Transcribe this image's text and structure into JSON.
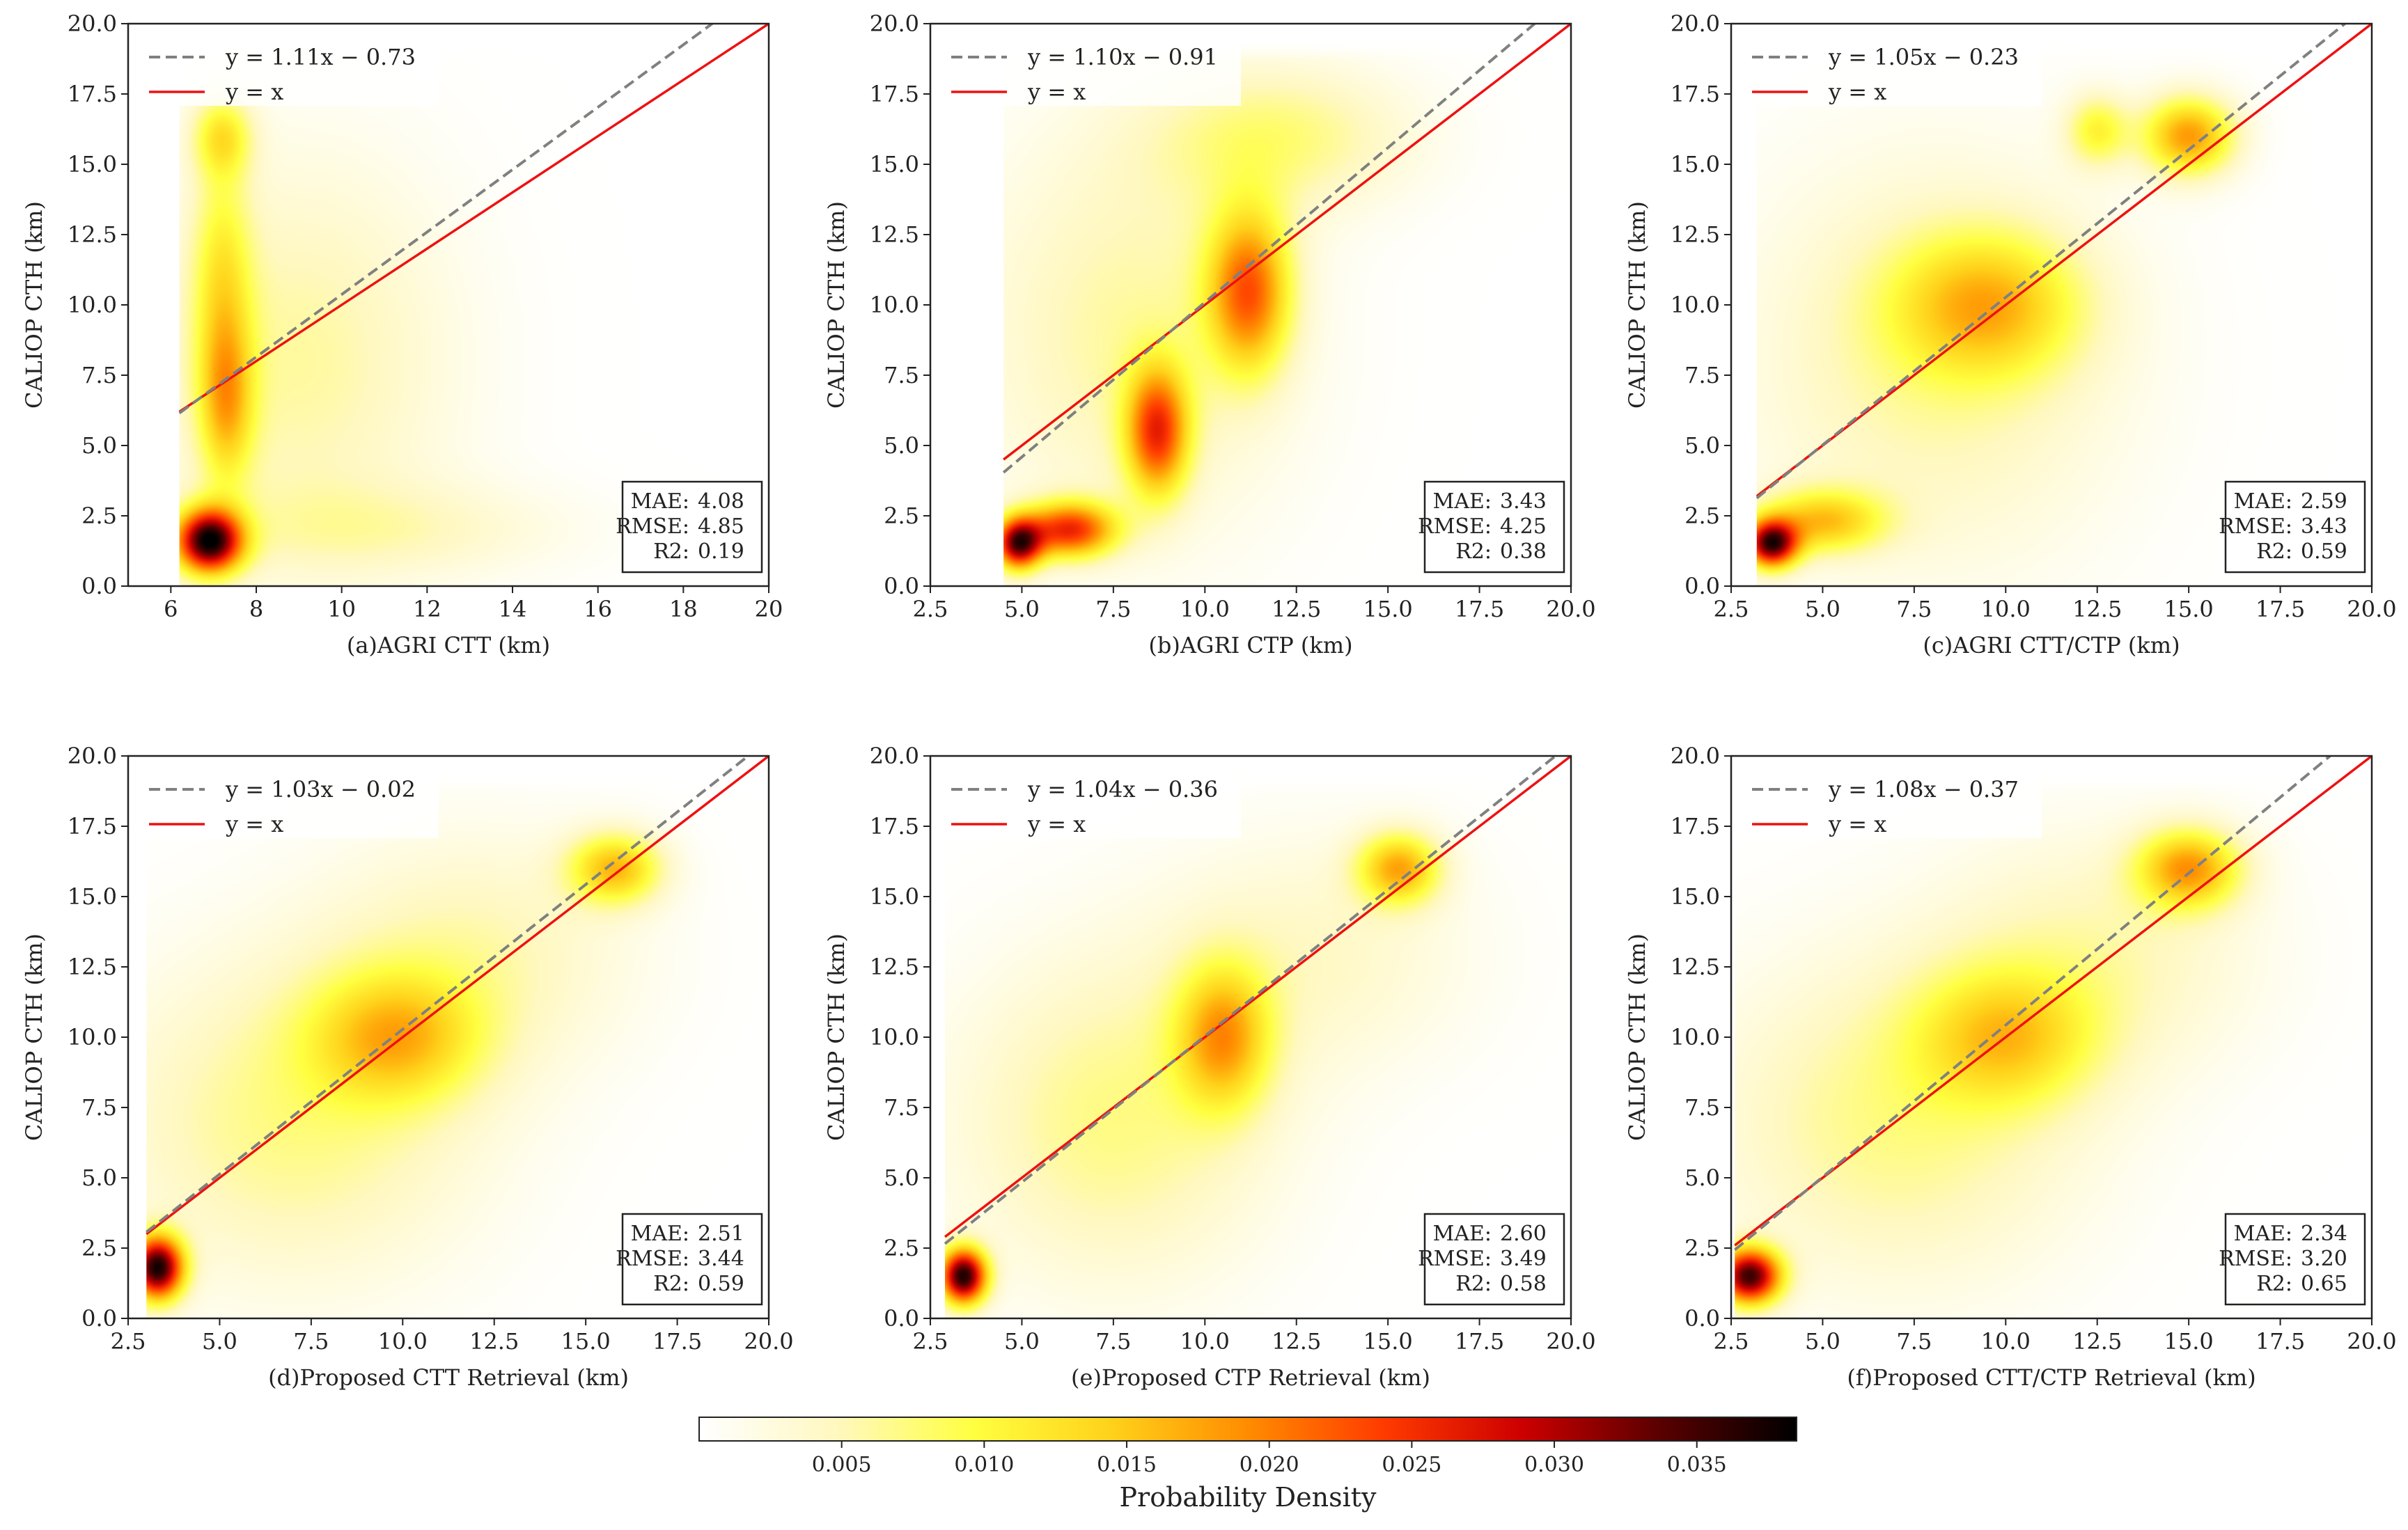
{
  "figure": {
    "colorbar": {
      "label": "Probability Density",
      "ticks": [
        0.005,
        0.01,
        0.015,
        0.02,
        0.025,
        0.03,
        0.035
      ],
      "tick_labels": [
        "0.005",
        "0.010",
        "0.015",
        "0.020",
        "0.025",
        "0.030",
        "0.035"
      ],
      "range": [
        0.0,
        0.0385
      ],
      "colormap": [
        "#ffffff",
        "#fff8c0",
        "#ffff40",
        "#ffd21a",
        "#ff8c00",
        "#ff3a00",
        "#cc0000",
        "#5a0000",
        "#000000"
      ]
    },
    "line_colors": {
      "fit": "#808080",
      "identity": "#ee1111"
    }
  },
  "chart_data": [
    {
      "id": "a",
      "type": "heatmap",
      "xlabel": "(a)AGRI CTT (km)",
      "ylabel": "CALIOP CTH (km)",
      "xlim": [
        5.0,
        20.0
      ],
      "ylim": [
        0.0,
        20.0
      ],
      "xticks": [
        6,
        8,
        10,
        12,
        14,
        16,
        18,
        20
      ],
      "xtick_labels": [
        "6",
        "8",
        "10",
        "12",
        "14",
        "16",
        "18",
        "20"
      ],
      "yticks": [
        0,
        2.5,
        5,
        7.5,
        10,
        12.5,
        15,
        17.5,
        20
      ],
      "ytick_labels": [
        "0.0",
        "2.5",
        "5.0",
        "7.5",
        "10.0",
        "12.5",
        "15.0",
        "17.5",
        "20.0"
      ],
      "data_extent_x": [
        6.2,
        20.0
      ],
      "fit": {
        "label": "y = 1.11x − 0.73",
        "slope": 1.11,
        "intercept": -0.73
      },
      "identity_label": "y = x",
      "stats": [
        {
          "key": "MAE:",
          "value": "4.08"
        },
        {
          "key": "RMSE:",
          "value": "4.85"
        },
        {
          "key": "R2:",
          "value": "0.19"
        }
      ],
      "density_blobs": [
        {
          "x": 6.9,
          "y": 1.6,
          "sx": 0.55,
          "sy": 0.8,
          "v": 0.036
        },
        {
          "x": 7.3,
          "y": 6.5,
          "sx": 0.45,
          "sy": 2.0,
          "v": 0.012
        },
        {
          "x": 7.2,
          "y": 11.0,
          "sx": 0.5,
          "sy": 3.0,
          "v": 0.009
        },
        {
          "x": 7.2,
          "y": 16.0,
          "sx": 0.5,
          "sy": 1.0,
          "v": 0.01
        },
        {
          "x": 9.0,
          "y": 8.0,
          "sx": 2.5,
          "sy": 5.0,
          "v": 0.006
        },
        {
          "x": 11.0,
          "y": 2.0,
          "sx": 3.0,
          "sy": 1.2,
          "v": 0.004
        }
      ]
    },
    {
      "id": "b",
      "type": "heatmap",
      "xlabel": "(b)AGRI CTP (km)",
      "ylabel": "CALIOP CTH (km)",
      "xlim": [
        2.5,
        20.0
      ],
      "ylim": [
        0.0,
        20.0
      ],
      "xticks": [
        2.5,
        5,
        7.5,
        10,
        12.5,
        15,
        17.5,
        20
      ],
      "xtick_labels": [
        "2.5",
        "5.0",
        "7.5",
        "10.0",
        "12.5",
        "15.0",
        "17.5",
        "20.0"
      ],
      "yticks": [
        0,
        2.5,
        5,
        7.5,
        10,
        12.5,
        15,
        17.5,
        20
      ],
      "ytick_labels": [
        "0.0",
        "2.5",
        "5.0",
        "7.5",
        "10.0",
        "12.5",
        "15.0",
        "17.5",
        "20.0"
      ],
      "data_extent_x": [
        4.5,
        20.0
      ],
      "fit": {
        "label": "y = 1.10x − 0.91",
        "slope": 1.1,
        "intercept": -0.91
      },
      "identity_label": "y = x",
      "stats": [
        {
          "key": "MAE:",
          "value": "3.43"
        },
        {
          "key": "RMSE:",
          "value": "4.25"
        },
        {
          "key": "R2:",
          "value": "0.38"
        }
      ],
      "density_blobs": [
        {
          "x": 4.9,
          "y": 1.5,
          "sx": 0.45,
          "sy": 0.65,
          "v": 0.03
        },
        {
          "x": 6.3,
          "y": 2.0,
          "sx": 0.9,
          "sy": 0.7,
          "v": 0.024
        },
        {
          "x": 8.7,
          "y": 5.5,
          "sx": 0.6,
          "sy": 1.6,
          "v": 0.022
        },
        {
          "x": 11.2,
          "y": 10.5,
          "sx": 0.8,
          "sy": 2.0,
          "v": 0.02
        },
        {
          "x": 12.0,
          "y": 16.0,
          "sx": 2.5,
          "sy": 1.8,
          "v": 0.007
        },
        {
          "x": 8.0,
          "y": 9.0,
          "sx": 3.0,
          "sy": 5.0,
          "v": 0.006
        }
      ]
    },
    {
      "id": "c",
      "type": "heatmap",
      "xlabel": "(c)AGRI CTT/CTP (km)",
      "ylabel": "CALIOP CTH (km)",
      "xlim": [
        2.5,
        20.0
      ],
      "ylim": [
        0.0,
        20.0
      ],
      "xticks": [
        2.5,
        5,
        7.5,
        10,
        12.5,
        15,
        17.5,
        20
      ],
      "xtick_labels": [
        "2.5",
        "5.0",
        "7.5",
        "10.0",
        "12.5",
        "15.0",
        "17.5",
        "20.0"
      ],
      "yticks": [
        0,
        2.5,
        5,
        7.5,
        10,
        12.5,
        15,
        17.5,
        20
      ],
      "ytick_labels": [
        "0.0",
        "2.5",
        "5.0",
        "7.5",
        "10.0",
        "12.5",
        "15.0",
        "17.5",
        "20.0"
      ],
      "data_extent_x": [
        3.2,
        20.0
      ],
      "fit": {
        "label": "y = 1.05x − 0.23",
        "slope": 1.05,
        "intercept": -0.23
      },
      "identity_label": "y = x",
      "stats": [
        {
          "key": "MAE:",
          "value": "2.59"
        },
        {
          "key": "RMSE:",
          "value": "3.43"
        },
        {
          "key": "R2:",
          "value": "0.59"
        }
      ],
      "density_blobs": [
        {
          "x": 3.6,
          "y": 1.5,
          "sx": 0.5,
          "sy": 0.6,
          "v": 0.032
        },
        {
          "x": 5.0,
          "y": 2.3,
          "sx": 1.2,
          "sy": 0.8,
          "v": 0.014
        },
        {
          "x": 9.5,
          "y": 10.0,
          "sx": 1.8,
          "sy": 1.8,
          "v": 0.013
        },
        {
          "x": 15.0,
          "y": 16.0,
          "sx": 0.9,
          "sy": 1.0,
          "v": 0.018
        },
        {
          "x": 12.5,
          "y": 16.2,
          "sx": 0.6,
          "sy": 0.9,
          "v": 0.01
        },
        {
          "x": 8.0,
          "y": 8.0,
          "sx": 3.5,
          "sy": 5.0,
          "v": 0.006
        }
      ]
    },
    {
      "id": "d",
      "type": "heatmap",
      "xlabel": "(d)Proposed CTT Retrieval (km)",
      "ylabel": "CALIOP CTH (km)",
      "xlim": [
        2.5,
        20.0
      ],
      "ylim": [
        0.0,
        20.0
      ],
      "xticks": [
        2.5,
        5,
        7.5,
        10,
        12.5,
        15,
        17.5,
        20
      ],
      "xtick_labels": [
        "2.5",
        "5.0",
        "7.5",
        "10.0",
        "12.5",
        "15.0",
        "17.5",
        "20.0"
      ],
      "yticks": [
        0,
        2.5,
        5,
        7.5,
        10,
        12.5,
        15,
        17.5,
        20
      ],
      "ytick_labels": [
        "0.0",
        "2.5",
        "5.0",
        "7.5",
        "10.0",
        "12.5",
        "15.0",
        "17.5",
        "20.0"
      ],
      "data_extent_x": [
        3.0,
        20.0
      ],
      "fit": {
        "label": "y = 1.03x − 0.02",
        "slope": 1.03,
        "intercept": -0.02
      },
      "identity_label": "y = x",
      "stats": [
        {
          "key": "MAE:",
          "value": "2.51"
        },
        {
          "key": "RMSE:",
          "value": "3.44"
        },
        {
          "key": "R2:",
          "value": "0.59"
        }
      ],
      "density_blobs": [
        {
          "x": 3.3,
          "y": 1.8,
          "sx": 0.5,
          "sy": 0.8,
          "v": 0.036
        },
        {
          "x": 9.8,
          "y": 10.0,
          "sx": 1.6,
          "sy": 1.6,
          "v": 0.012
        },
        {
          "x": 15.8,
          "y": 16.0,
          "sx": 0.9,
          "sy": 0.9,
          "v": 0.015
        },
        {
          "x": 7.0,
          "y": 7.0,
          "sx": 3.5,
          "sy": 4.0,
          "v": 0.007
        },
        {
          "x": 12.0,
          "y": 13.0,
          "sx": 3.0,
          "sy": 3.0,
          "v": 0.005
        }
      ]
    },
    {
      "id": "e",
      "type": "heatmap",
      "xlabel": "(e)Proposed CTP Retrieval (km)",
      "ylabel": "CALIOP CTH (km)",
      "xlim": [
        2.5,
        20.0
      ],
      "ylim": [
        0.0,
        20.0
      ],
      "xticks": [
        2.5,
        5,
        7.5,
        10,
        12.5,
        15,
        17.5,
        20
      ],
      "xtick_labels": [
        "2.5",
        "5.0",
        "7.5",
        "10.0",
        "12.5",
        "15.0",
        "17.5",
        "20.0"
      ],
      "yticks": [
        0,
        2.5,
        5,
        7.5,
        10,
        12.5,
        15,
        17.5,
        20
      ],
      "ytick_labels": [
        "0.0",
        "2.5",
        "5.0",
        "7.5",
        "10.0",
        "12.5",
        "15.0",
        "17.5",
        "20.0"
      ],
      "data_extent_x": [
        2.9,
        20.0
      ],
      "fit": {
        "label": "y = 1.04x − 0.36",
        "slope": 1.04,
        "intercept": -0.36
      },
      "identity_label": "y = x",
      "stats": [
        {
          "key": "MAE:",
          "value": "2.60"
        },
        {
          "key": "RMSE:",
          "value": "3.49"
        },
        {
          "key": "R2:",
          "value": "0.58"
        }
      ],
      "density_blobs": [
        {
          "x": 3.4,
          "y": 1.5,
          "sx": 0.45,
          "sy": 0.7,
          "v": 0.036
        },
        {
          "x": 10.5,
          "y": 10.0,
          "sx": 0.9,
          "sy": 1.8,
          "v": 0.015
        },
        {
          "x": 15.3,
          "y": 16.0,
          "sx": 0.8,
          "sy": 0.9,
          "v": 0.016
        },
        {
          "x": 7.5,
          "y": 7.0,
          "sx": 3.0,
          "sy": 4.0,
          "v": 0.007
        },
        {
          "x": 13.0,
          "y": 13.0,
          "sx": 3.0,
          "sy": 3.0,
          "v": 0.004
        }
      ]
    },
    {
      "id": "f",
      "type": "heatmap",
      "xlabel": "(f)Proposed CTT/CTP Retrieval (km)",
      "ylabel": "CALIOP CTH (km)",
      "xlim": [
        2.5,
        20.0
      ],
      "ylim": [
        0.0,
        20.0
      ],
      "xticks": [
        2.5,
        5,
        7.5,
        10,
        12.5,
        15,
        17.5,
        20
      ],
      "xtick_labels": [
        "2.5",
        "5.0",
        "7.5",
        "10.0",
        "12.5",
        "15.0",
        "17.5",
        "20.0"
      ],
      "yticks": [
        0,
        2.5,
        5,
        7.5,
        10,
        12.5,
        15,
        17.5,
        20
      ],
      "ytick_labels": [
        "0.0",
        "2.5",
        "5.0",
        "7.5",
        "10.0",
        "12.5",
        "15.0",
        "17.5",
        "20.0"
      ],
      "data_extent_x": [
        2.6,
        20.0
      ],
      "fit": {
        "label": "y = 1.08x − 0.37",
        "slope": 1.08,
        "intercept": -0.37
      },
      "identity_label": "y = x",
      "stats": [
        {
          "key": "MAE:",
          "value": "2.34"
        },
        {
          "key": "RMSE:",
          "value": "3.20"
        },
        {
          "key": "R2:",
          "value": "0.65"
        }
      ],
      "density_blobs": [
        {
          "x": 3.0,
          "y": 1.5,
          "sx": 0.6,
          "sy": 0.7,
          "v": 0.034
        },
        {
          "x": 10.0,
          "y": 10.0,
          "sx": 1.7,
          "sy": 1.7,
          "v": 0.011
        },
        {
          "x": 15.0,
          "y": 16.0,
          "sx": 1.0,
          "sy": 1.0,
          "v": 0.017
        },
        {
          "x": 7.0,
          "y": 7.0,
          "sx": 3.5,
          "sy": 4.0,
          "v": 0.007
        },
        {
          "x": 12.5,
          "y": 13.0,
          "sx": 3.0,
          "sy": 3.0,
          "v": 0.005
        }
      ]
    }
  ]
}
